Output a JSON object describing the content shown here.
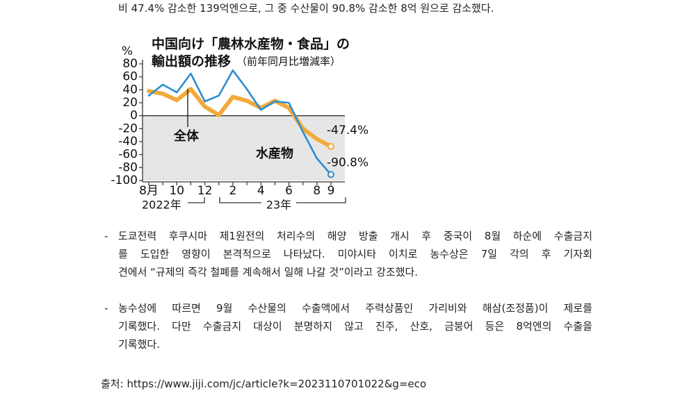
{
  "intro": "비 47.4% 감소한 139억엔으로, 그 중 수산물이 90.8% 감소한 8억 원으로 감소했다.",
  "chart_data": {
    "type": "line",
    "title": [
      "中国向け「農林水産物・食品」の",
      "輸出額の推移"
    ],
    "subtitle": "（前年同月比増減率）",
    "y_unit": "%",
    "categories": [
      "8月",
      null,
      "10",
      null,
      "12",
      null,
      "2",
      null,
      "4",
      null,
      "6",
      null,
      "8",
      "9"
    ],
    "year_labels": [
      "2022年",
      "23年"
    ],
    "ylim": [
      -100,
      80
    ],
    "yticks": [
      80,
      60,
      40,
      20,
      0,
      -20,
      -40,
      -60,
      -80,
      -100
    ],
    "series": [
      {
        "name": "全体",
        "color": "#f2aa3a",
        "values": [
          38,
          34,
          24,
          41,
          14,
          1,
          29,
          23,
          12,
          23,
          12,
          -20,
          -36,
          -47.4
        ],
        "value_labels": [
          null,
          null,
          null,
          null,
          null,
          null,
          null,
          null,
          null,
          null,
          null,
          null,
          null,
          "-47.4%"
        ]
      },
      {
        "name": "水産物",
        "color": "#2b8ecf",
        "values": [
          31,
          48,
          36,
          65,
          22,
          31,
          70,
          41,
          9,
          22,
          20,
          -25,
          -66,
          -90.8
        ],
        "value_labels": [
          null,
          null,
          null,
          null,
          null,
          null,
          null,
          null,
          null,
          null,
          null,
          null,
          null,
          "-90.8%"
        ]
      }
    ]
  },
  "paragraphs": [
    {
      "bullet": "-",
      "lines": [
        "도쿄전력 후쿠시마 제1원전의 처리수의 해양 방출 개시 후 중국이 8월 하순에 수출금지",
        "를 도입한 영향이 본격적으로 나타났다. 미야시타 이치로 농수상은 7일 각의 후 기자회",
        "견에서 “규제의 즉각 철폐를 계속해서 일해 나갈 것”이라고 강조했다."
      ]
    },
    {
      "bullet": "-",
      "lines": [
        "농수성에 따르면 9월 수산물의 수출액에서 주력상품인 가리비와 해삼(조정품)이 제로를",
        "기록했다. 다만 수출금지 대상이 분명하지 않고 진주, 산호, 금붕어 등은 8억엔의 수출을",
        "기록했다."
      ]
    }
  ],
  "source": {
    "label": "출처:",
    "url": "https://www.jiji.com/jc/article?k=2023110701022&g=eco"
  }
}
